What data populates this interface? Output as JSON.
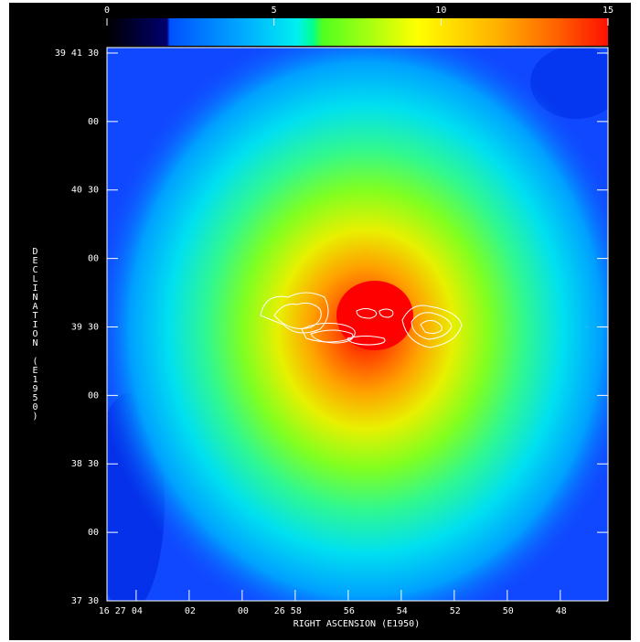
{
  "chart_data": {
    "type": "image",
    "xlabel": "RIGHT ASCENSION (E1950)",
    "ylabel": "DECLINATION (E1950)",
    "xlim": [
      59225.1,
      59206.2
    ],
    "xticks": [
      {
        "value": 59224,
        "label": "16 27 04"
      },
      {
        "value": 59222,
        "label": "02"
      },
      {
        "value": 59220,
        "label": "00"
      },
      {
        "value": 59218,
        "label": "26 58"
      },
      {
        "value": 59216,
        "label": "56"
      },
      {
        "value": 59214,
        "label": "54"
      },
      {
        "value": 59212,
        "label": "52"
      },
      {
        "value": 59210,
        "label": "50"
      },
      {
        "value": 59208,
        "label": "48"
      }
    ],
    "ylim": [
      142650,
      142892.4
    ],
    "yticks": [
      {
        "value": 142890,
        "label": "39 41 30"
      },
      {
        "value": 142860,
        "label": "00"
      },
      {
        "value": 142830,
        "label": "40 30"
      },
      {
        "value": 142800,
        "label": "00"
      },
      {
        "value": 142770,
        "label": "39 30"
      },
      {
        "value": 142740,
        "label": "00"
      },
      {
        "value": 142710,
        "label": "38 30"
      },
      {
        "value": 142680,
        "label": "00"
      },
      {
        "value": 142650,
        "label": "37 30"
      }
    ],
    "colorbar": {
      "lim": [
        0,
        15
      ],
      "ticks": [
        0,
        5,
        10,
        15
      ]
    }
  }
}
